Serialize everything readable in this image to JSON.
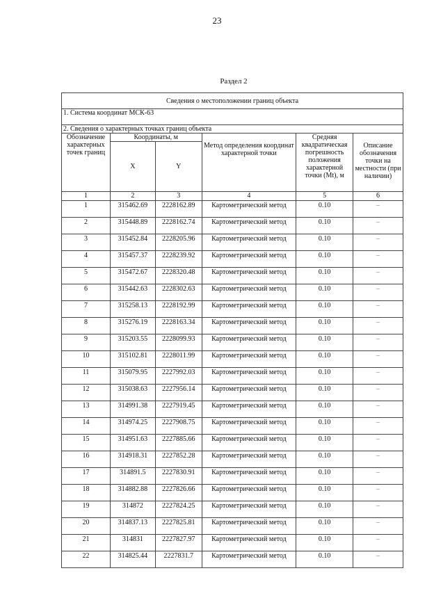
{
  "page_number": "23",
  "section_title": "Раздел 2",
  "table": {
    "title": "Сведения о местоположении границ объекта",
    "coordinate_system": "1. Система координат МСК-63",
    "points_header": "2. Сведения о характерных точках границ объекта",
    "headers": {
      "designation": "Обозначение характерных точек границ",
      "coordinates": "Координаты, м",
      "x": "X",
      "y": "Y",
      "method": "Метод определения координат характерной точки",
      "error": "Средняя квадратическая погрешность положения характерной точки (Mt), м",
      "description": "Описание обозначения точки на местности (при наличии)"
    },
    "column_numbers": [
      "1",
      "2",
      "3",
      "4",
      "5",
      "6"
    ],
    "rows": [
      [
        "1",
        "315462.69",
        "2228162.89",
        "Картометрический метод",
        "0.10",
        "–"
      ],
      [
        "2",
        "315448.89",
        "2228162.74",
        "Картометрический метод",
        "0.10",
        "–"
      ],
      [
        "3",
        "315452.84",
        "2228205.96",
        "Картометрический метод",
        "0.10",
        "–"
      ],
      [
        "4",
        "315457.37",
        "2228239.92",
        "Картометрический метод",
        "0.10",
        "–"
      ],
      [
        "5",
        "315472.67",
        "2228320.48",
        "Картометрический метод",
        "0.10",
        "–"
      ],
      [
        "6",
        "315442.63",
        "2228302.63",
        "Картометрический метод",
        "0.10",
        "–"
      ],
      [
        "7",
        "315258.13",
        "2228192.99",
        "Картометрический метод",
        "0.10",
        "–"
      ],
      [
        "8",
        "315276.19",
        "2228163.34",
        "Картометрический метод",
        "0.10",
        "–"
      ],
      [
        "9",
        "315203.55",
        "2228099.93",
        "Картометрический метод",
        "0.10",
        "–"
      ],
      [
        "10",
        "315102.81",
        "2228011.99",
        "Картометрический метод",
        "0.10",
        "–"
      ],
      [
        "11",
        "315079.95",
        "2227992.03",
        "Картометрический метод",
        "0.10",
        "–"
      ],
      [
        "12",
        "315038.63",
        "2227956.14",
        "Картометрический метод",
        "0.10",
        "–"
      ],
      [
        "13",
        "314991.38",
        "2227919.45",
        "Картометрический метод",
        "0.10",
        "–"
      ],
      [
        "14",
        "314974.25",
        "2227908.75",
        "Картометрический метод",
        "0.10",
        "–"
      ],
      [
        "15",
        "314951.63",
        "2227885.66",
        "Картометрический метод",
        "0.10",
        "–"
      ],
      [
        "16",
        "314918.31",
        "2227852.28",
        "Картометрический метод",
        "0.10",
        "–"
      ],
      [
        "17",
        "314891.5",
        "2227830.91",
        "Картометрический метод",
        "0.10",
        "–"
      ],
      [
        "18",
        "314882.88",
        "2227826.66",
        "Картометрический метод",
        "0.10",
        "–"
      ],
      [
        "19",
        "314872",
        "2227824.25",
        "Картометрический метод",
        "0.10",
        "–"
      ],
      [
        "20",
        "314837.13",
        "2227825.81",
        "Картометрический метод",
        "0.10",
        "–"
      ],
      [
        "21",
        "314831",
        "2227827.97",
        "Картометрический метод",
        "0.10",
        "–"
      ],
      [
        "22",
        "314825.44",
        "2227831.7",
        "Картометрический метод",
        "0.10",
        "–"
      ]
    ]
  }
}
